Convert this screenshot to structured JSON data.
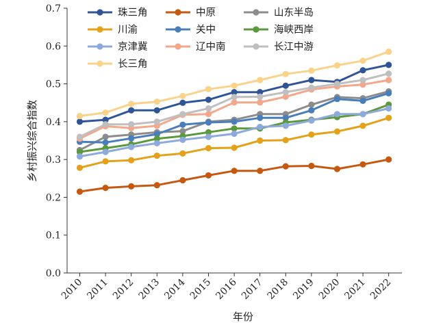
{
  "chart_data": {
    "type": "line",
    "title": "",
    "xlabel": "年份",
    "ylabel": "乡村振兴综合指数",
    "ylim": [
      0,
      0.7
    ],
    "yticks": [
      "0.0",
      "0.1",
      "0.2",
      "0.3",
      "0.4",
      "0.5",
      "0.6",
      "0.7"
    ],
    "categories": [
      "2010",
      "2011",
      "2012",
      "2013",
      "2014",
      "2015",
      "2016",
      "2017",
      "2018",
      "2019",
      "2020",
      "2021",
      "2022"
    ],
    "grid": false,
    "legend_position": "top-left",
    "series": [
      {
        "name": "珠三角",
        "color": "#2f5597",
        "values": [
          0.4,
          0.405,
          0.43,
          0.43,
          0.45,
          0.458,
          0.478,
          0.478,
          0.495,
          0.51,
          0.505,
          0.536,
          0.55
        ]
      },
      {
        "name": "中原",
        "color": "#c65911",
        "values": [
          0.215,
          0.225,
          0.229,
          0.232,
          0.245,
          0.258,
          0.27,
          0.27,
          0.282,
          0.283,
          0.275,
          0.287,
          0.3
        ]
      },
      {
        "name": "山东半岛",
        "color": "#8c8c8c",
        "values": [
          0.325,
          0.36,
          0.366,
          0.372,
          0.375,
          0.4,
          0.405,
          0.42,
          0.42,
          0.445,
          0.465,
          0.462,
          0.48
        ]
      },
      {
        "name": "川渝",
        "color": "#e3a21a",
        "values": [
          0.278,
          0.295,
          0.298,
          0.31,
          0.316,
          0.33,
          0.331,
          0.35,
          0.351,
          0.366,
          0.374,
          0.389,
          0.41
        ]
      },
      {
        "name": "关中",
        "color": "#4a7ebb",
        "values": [
          0.347,
          0.345,
          0.356,
          0.367,
          0.392,
          0.398,
          0.4,
          0.41,
          0.41,
          0.43,
          0.46,
          0.455,
          0.475
        ]
      },
      {
        "name": "海峡西岸",
        "color": "#5b9a3c",
        "values": [
          0.32,
          0.33,
          0.34,
          0.355,
          0.362,
          0.372,
          0.382,
          0.382,
          0.398,
          0.405,
          0.412,
          0.42,
          0.445
        ]
      },
      {
        "name": "京津冀",
        "color": "#8ea9db",
        "values": [
          0.308,
          0.32,
          0.333,
          0.343,
          0.352,
          0.36,
          0.368,
          0.386,
          0.389,
          0.403,
          0.42,
          0.42,
          0.435
        ]
      },
      {
        "name": "辽中南",
        "color": "#f4a78a",
        "values": [
          0.355,
          0.388,
          0.383,
          0.389,
          0.418,
          0.42,
          0.451,
          0.451,
          0.466,
          0.485,
          0.493,
          0.498,
          0.51
        ]
      },
      {
        "name": "长江中游",
        "color": "#bfbfbf",
        "values": [
          0.36,
          0.393,
          0.393,
          0.4,
          0.42,
          0.435,
          0.465,
          0.466,
          0.478,
          0.49,
          0.5,
          0.51,
          0.527
        ]
      },
      {
        "name": "长三角",
        "color": "#fad38a",
        "values": [
          0.415,
          0.424,
          0.447,
          0.453,
          0.468,
          0.486,
          0.495,
          0.51,
          0.526,
          0.535,
          0.549,
          0.561,
          0.585
        ]
      }
    ]
  }
}
